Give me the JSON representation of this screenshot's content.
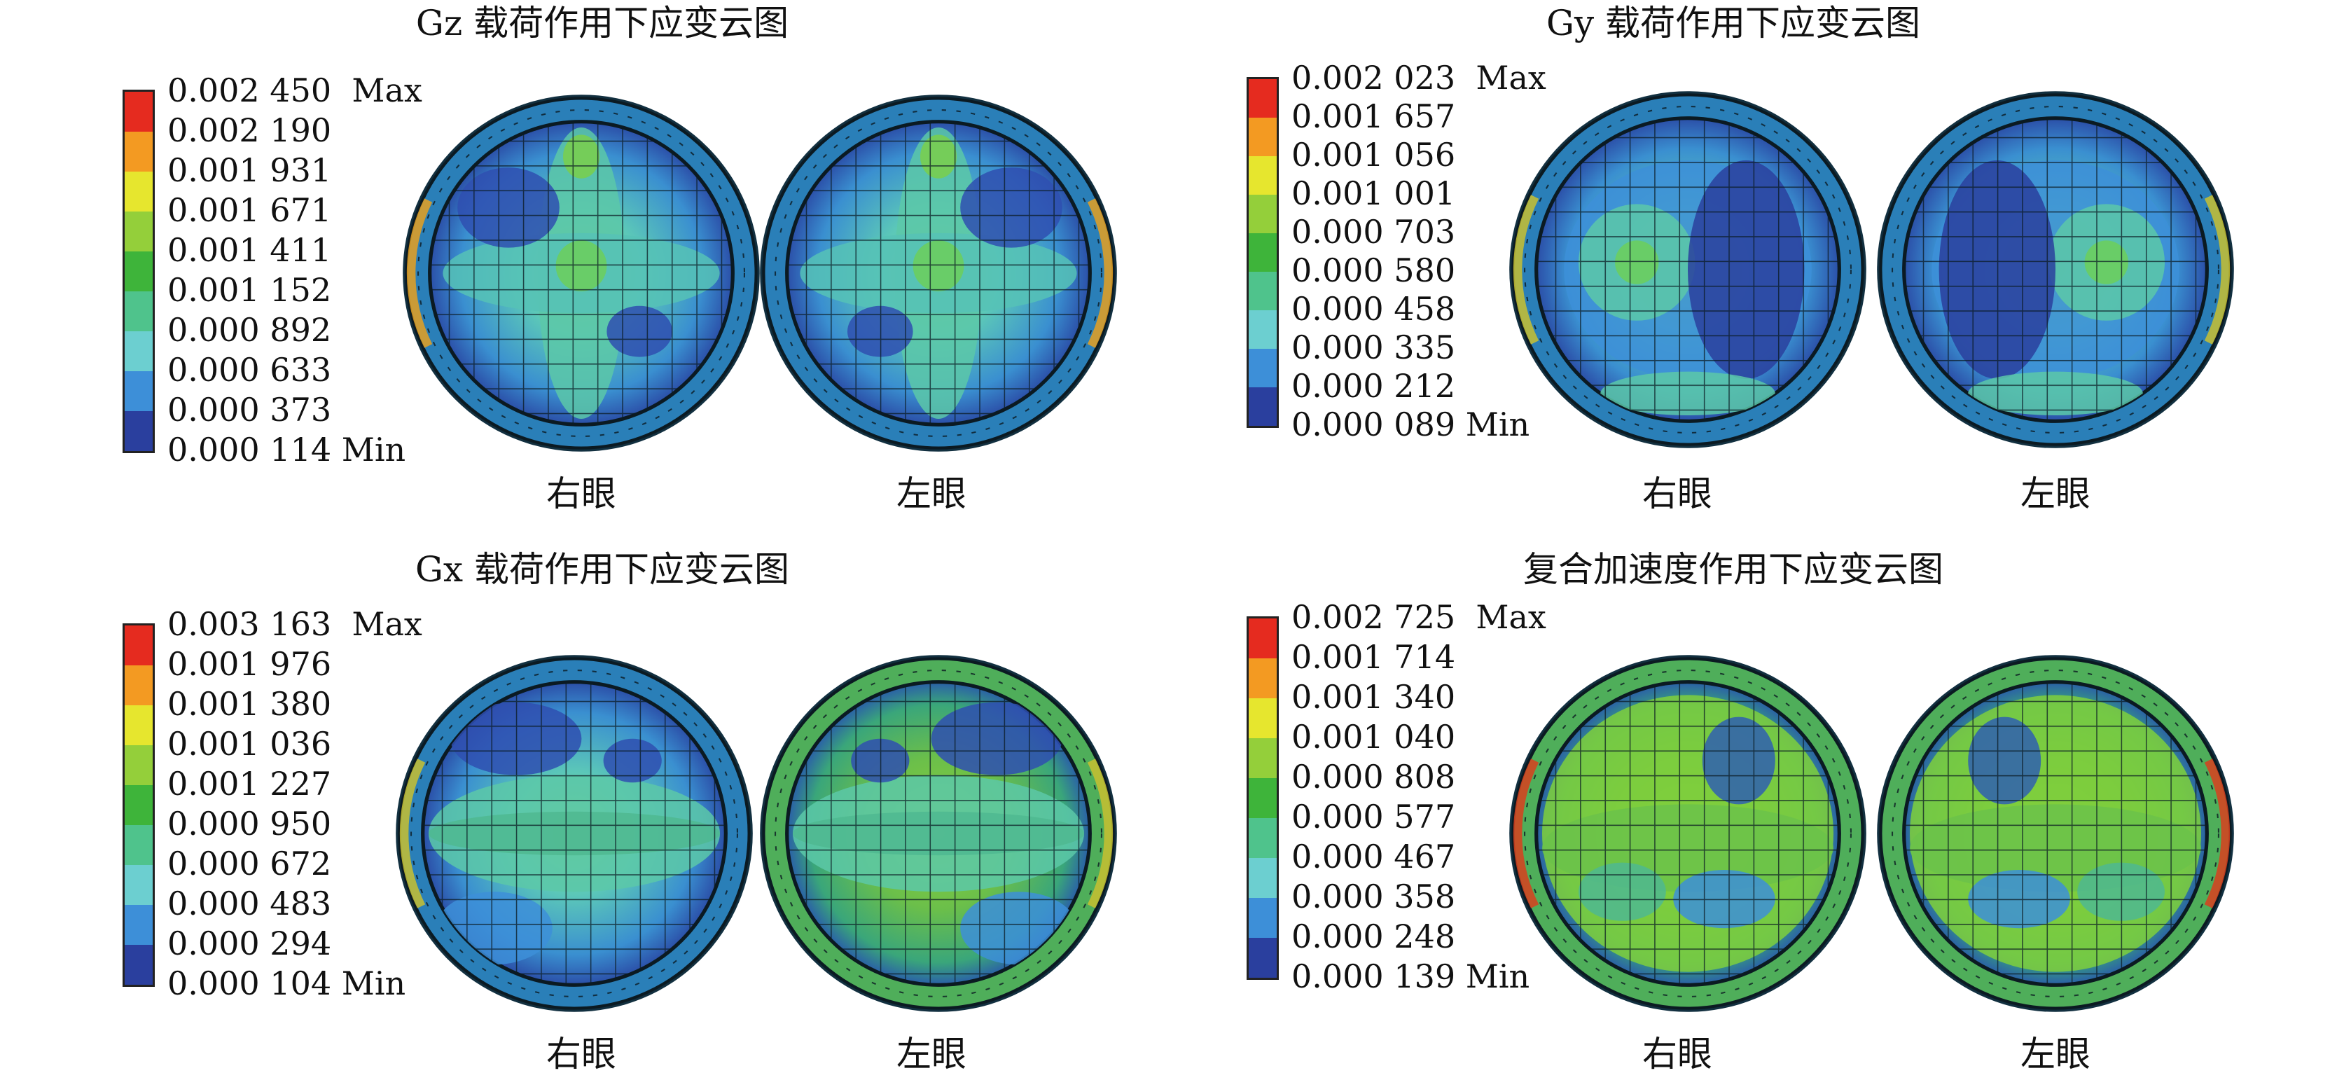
{
  "colors": {
    "scale": [
      "#2a3f9e",
      "#3d8fd8",
      "#6ccfd0",
      "#4fc38c",
      "#3eb43a",
      "#94cf3a",
      "#e6e62e",
      "#f39a22",
      "#e52b1f"
    ],
    "eye_base": "#2f86c8",
    "eye_rim": "#1f5a78"
  },
  "panels": [
    {
      "title": "Gz 载荷作用下应变云图",
      "labels": [
        "0.002 450  Max",
        "0.002 190",
        "0.001 931",
        "0.001 671",
        "0.001 411",
        "0.001 152",
        "0.000 892",
        "0.000 633",
        "0.000 373",
        "0.000 114 Min"
      ],
      "eyes": [
        {
          "caption": "右眼"
        },
        {
          "caption": "左眼"
        }
      ]
    },
    {
      "title": "Gy 载荷作用下应变云图",
      "labels": [
        "0.002 023  Max",
        "0.001 657",
        "0.001 056",
        "0.001 001",
        "0.000 703",
        "0.000 580",
        "0.000 458",
        "0.000 335",
        "0.000 212",
        "0.000 089 Min"
      ],
      "eyes": [
        {
          "caption": "右眼"
        },
        {
          "caption": "左眼"
        }
      ]
    },
    {
      "title": "Gx 载荷作用下应变云图",
      "labels": [
        "0.003 163  Max",
        "0.001 976",
        "0.001 380",
        "0.001 036",
        "0.001 227",
        "0.000 950",
        "0.000 672",
        "0.000 483",
        "0.000 294",
        "0.000 104 Min"
      ],
      "eyes": [
        {
          "caption": "右眼"
        },
        {
          "caption": "左眼"
        }
      ]
    },
    {
      "title": "复合加速度作用下应变云图",
      "labels": [
        "0.002 725  Max",
        "0.001 714",
        "0.001 340",
        "0.001 040",
        "0.000 808",
        "0.000 577",
        "0.000 467",
        "0.000 358",
        "0.000 248",
        "0.000 139 Min"
      ],
      "eyes": [
        {
          "caption": "右眼"
        },
        {
          "caption": "左眼"
        }
      ]
    }
  ]
}
